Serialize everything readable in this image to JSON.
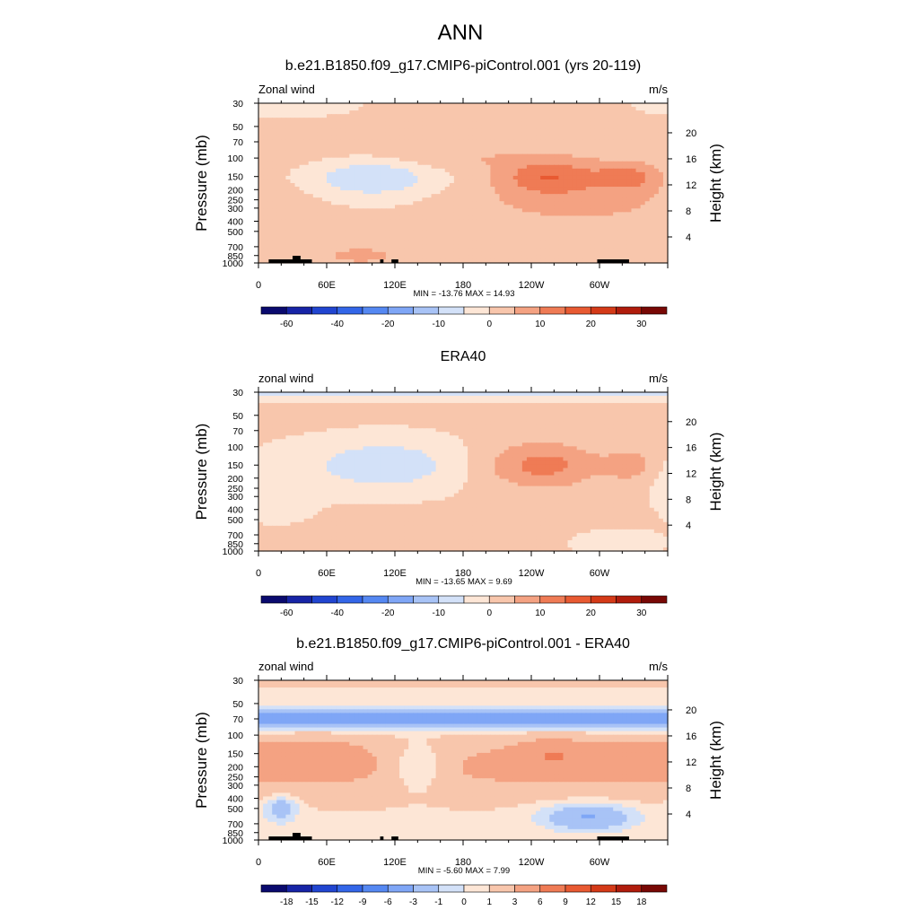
{
  "figure_title": "ANN",
  "chart_data": [
    {
      "type": "heatmap",
      "title": "b.e21.B1850.f09_g17.CMIP6-piControl.001 (yrs 20-119)",
      "variable_label": "Zonal wind",
      "units_label": "m/s",
      "ylabel": "Pressure (mb)",
      "ylabel_right": "Height (km)",
      "pressure_ticks": [
        30,
        50,
        70,
        100,
        150,
        200,
        250,
        300,
        400,
        500,
        700,
        850,
        1000
      ],
      "height_ticks": [
        4,
        8,
        12,
        16,
        20
      ],
      "x_ticks": [
        "0",
        "60E",
        "120E",
        "180",
        "120W",
        "60W"
      ],
      "x_tick_lon": [
        0,
        60,
        120,
        180,
        240,
        300
      ],
      "xlim": [
        0,
        360
      ],
      "ylim": [
        1000,
        30
      ],
      "min_max_label": "MIN = -13.76  MAX =  14.93",
      "colorbar_levels": [
        -70,
        -60,
        -50,
        -40,
        -30,
        -20,
        -15,
        -10,
        -5,
        0,
        5,
        10,
        15,
        20,
        25,
        30,
        35
      ],
      "colorbar_labels": [
        "-60",
        "-40",
        "-20",
        "-10",
        "0",
        "10",
        "20",
        "30"
      ],
      "topography": true,
      "features": [
        {
          "type": "blob",
          "lon": 165,
          "p": 100,
          "rlon": 140,
          "rlp": 0.28,
          "amp": 4
        },
        {
          "type": "blob",
          "lon": 255,
          "p": 150,
          "rlon": 42,
          "rlp": 0.35,
          "amp": 12
        },
        {
          "type": "blob",
          "lon": 325,
          "p": 150,
          "rlon": 30,
          "rlp": 0.3,
          "amp": 10
        },
        {
          "type": "blob",
          "lon": 280,
          "p": 260,
          "rlon": 95,
          "rlp": 0.55,
          "amp": 6
        },
        {
          "type": "blob",
          "lon": 100,
          "p": 150,
          "rlon": 55,
          "rlp": 0.45,
          "amp": -11
        },
        {
          "type": "blob",
          "lon": 90,
          "p": 850,
          "rlon": 55,
          "rlp": 0.3,
          "amp": 5
        },
        {
          "type": "blob",
          "lon": 30,
          "p": 30,
          "rlon": 50,
          "rlp": 0.25,
          "amp": -4
        }
      ]
    },
    {
      "type": "heatmap",
      "title": "ERA40",
      "variable_label": "zonal wind",
      "units_label": "m/s",
      "ylabel": "Pressure (mb)",
      "ylabel_right": "Height (km)",
      "pressure_ticks": [
        30,
        50,
        70,
        100,
        150,
        200,
        250,
        300,
        400,
        500,
        700,
        850,
        1000
      ],
      "height_ticks": [
        4,
        8,
        12,
        16,
        20
      ],
      "x_ticks": [
        "0",
        "60E",
        "120E",
        "180",
        "120W",
        "60W"
      ],
      "x_tick_lon": [
        0,
        60,
        120,
        180,
        240,
        300
      ],
      "xlim": [
        0,
        360
      ],
      "ylim": [
        1000,
        30
      ],
      "min_max_label": "MIN = -13.65  MAX =   9.69",
      "colorbar_levels": [
        -70,
        -60,
        -50,
        -40,
        -30,
        -20,
        -15,
        -10,
        -5,
        0,
        5,
        10,
        15,
        20,
        25,
        30,
        35
      ],
      "colorbar_labels": [
        "-60",
        "-40",
        "-20",
        "-10",
        "0",
        "10",
        "20",
        "30"
      ],
      "topography": false,
      "features": [
        {
          "type": "band",
          "p": 30,
          "rlp": 0.13,
          "amp": -9
        },
        {
          "type": "blob",
          "lon": 250,
          "p": 150,
          "rlon": 50,
          "rlp": 0.5,
          "amp": 11
        },
        {
          "type": "blob",
          "lon": 327,
          "p": 150,
          "rlon": 20,
          "rlp": 0.3,
          "amp": 8
        },
        {
          "type": "blob",
          "lon": 110,
          "p": 150,
          "rlon": 65,
          "rlp": 0.55,
          "amp": -10
        },
        {
          "type": "blob",
          "lon": 20,
          "p": 250,
          "rlon": 30,
          "rlp": 0.7,
          "amp": -4
        },
        {
          "type": "blob",
          "lon": 80,
          "p": 850,
          "rlon": 60,
          "rlp": 0.3,
          "amp": 4
        },
        {
          "type": "blob",
          "lon": 320,
          "p": 850,
          "rlon": 35,
          "rlp": 0.25,
          "amp": -5
        }
      ]
    },
    {
      "type": "heatmap",
      "title": "b.e21.B1850.f09_g17.CMIP6-piControl.001 - ERA40",
      "variable_label": "zonal wind",
      "units_label": "m/s",
      "ylabel": "Pressure (mb)",
      "ylabel_right": "Height (km)",
      "pressure_ticks": [
        30,
        50,
        70,
        100,
        150,
        200,
        250,
        300,
        400,
        500,
        700,
        850,
        1000
      ],
      "height_ticks": [
        4,
        8,
        12,
        16,
        20
      ],
      "x_ticks": [
        "0",
        "60E",
        "120E",
        "180",
        "120W",
        "60W"
      ],
      "x_tick_lon": [
        0,
        60,
        120,
        180,
        240,
        300
      ],
      "xlim": [
        0,
        360
      ],
      "ylim": [
        1000,
        30
      ],
      "min_max_label": "MIN = -5.60  MAX =  7.99",
      "colorbar_levels": [
        -21,
        -18,
        -15,
        -12,
        -9,
        -6,
        -3,
        -1,
        0,
        1,
        3,
        6,
        9,
        12,
        15,
        18,
        21
      ],
      "colorbar_labels": [
        "-18",
        "-15",
        "-12",
        "-9",
        "-6",
        "-3",
        "-1",
        "0",
        "1",
        "3",
        "6",
        "9",
        "12",
        "15",
        "18"
      ],
      "topography": true,
      "features": [
        {
          "type": "band",
          "p": 30,
          "rlp": 0.12,
          "amp": 2.2
        },
        {
          "type": "band",
          "p": 70,
          "rlp": 0.22,
          "amp": -5.2
        },
        {
          "type": "band",
          "p": 200,
          "rlp": 0.6,
          "amp": 2.8
        },
        {
          "type": "blob",
          "lon": 260,
          "p": 150,
          "rlon": 35,
          "rlp": 0.35,
          "amp": 3
        },
        {
          "type": "blob",
          "lon": 335,
          "p": 150,
          "rlon": 30,
          "rlp": 0.3,
          "amp": 2.5
        },
        {
          "type": "blob",
          "lon": 50,
          "p": 150,
          "rlon": 40,
          "rlp": 0.35,
          "amp": 2
        },
        {
          "type": "blob",
          "lon": 140,
          "p": 200,
          "rlon": 30,
          "rlp": 0.5,
          "amp": -3.5
        },
        {
          "type": "blob",
          "lon": 290,
          "p": 600,
          "rlon": 40,
          "rlp": 0.3,
          "amp": -4
        },
        {
          "type": "blob",
          "lon": 20,
          "p": 500,
          "rlon": 15,
          "rlp": 0.3,
          "amp": -3
        }
      ]
    }
  ]
}
